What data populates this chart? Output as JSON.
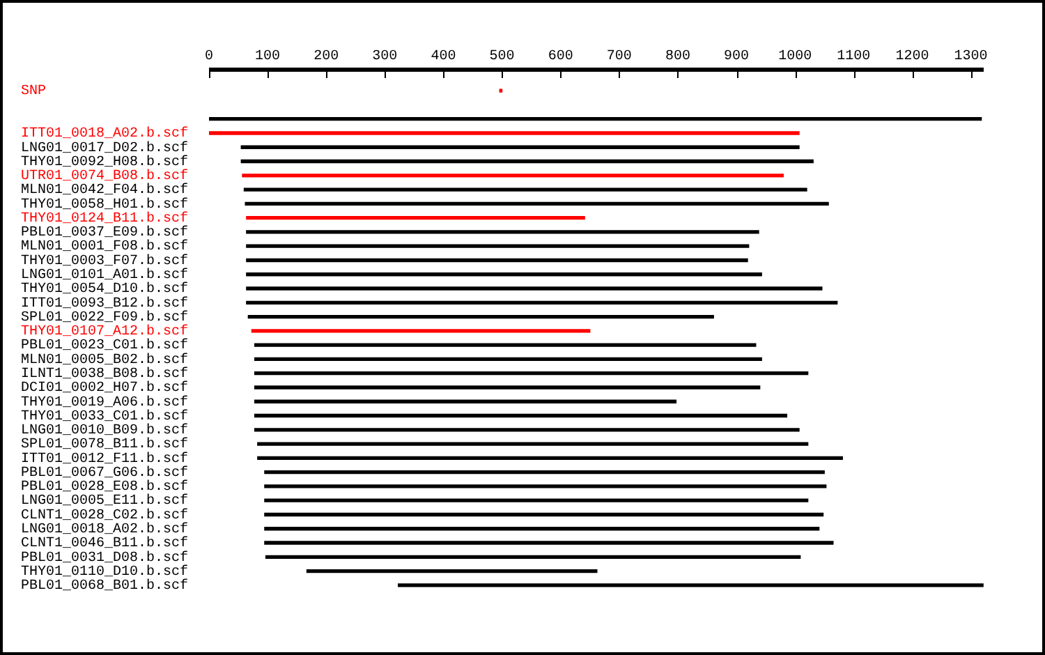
{
  "chart_data": {
    "type": "bar",
    "orientation": "horizontal",
    "categories": [
      "SNP",
      null,
      null,
      "ITT01_0018_A02.b.scf",
      "LNG01_0017_D02.b.scf",
      "THY01_0092_H08.b.scf",
      "UTR01_0074_B08.b.scf",
      "MLN01_0042_F04.b.scf",
      "THY01_0058_H01.b.scf",
      "THY01_0124_B11.b.scf",
      "PBL01_0037_E09.b.scf",
      "MLN01_0001_F08.b.scf",
      "THY01_0003_F07.b.scf",
      "LNG01_0101_A01.b.scf",
      "THY01_0054_D10.b.scf",
      "ITT01_0093_B12.b.scf",
      "SPL01_0022_F09.b.scf",
      "THY01_0107_A12.b.scf",
      "PBL01_0023_C01.b.scf",
      "MLN01_0005_B02.b.scf",
      "ILNT1_0038_B08.b.scf",
      "DCI01_0002_H07.b.scf",
      "THY01_0019_A06.b.scf",
      "THY01_0033_C01.b.scf",
      "LNG01_0010_B09.b.scf",
      "SPL01_0078_B11.b.scf",
      "ITT01_0012_F11.b.scf",
      "PBL01_0067_G06.b.scf",
      "PBL01_0028_E08.b.scf",
      "LNG01_0005_E11.b.scf",
      "CLNT1_0028_C02.b.scf",
      "LNG01_0018_A02.b.scf",
      "CLNT1_0046_B11.b.scf",
      "PBL01_0031_D08.b.scf",
      "THY01_0110_D10.b.scf",
      "PBL01_0068_B01.b.scf"
    ],
    "base": [
      496,
      null,
      0,
      0,
      55,
      55,
      57,
      60,
      62,
      64,
      64,
      64,
      64,
      64,
      64,
      64,
      67,
      73,
      78,
      78,
      78,
      78,
      78,
      78,
      78,
      83,
      83,
      95,
      95,
      95,
      95,
      95,
      95,
      97,
      167,
      323
    ],
    "values": [
      4,
      null,
      1318,
      1007,
      952,
      976,
      923,
      960,
      995,
      577,
      874,
      857,
      855,
      879,
      982,
      1008,
      794,
      577,
      855,
      865,
      944,
      862,
      719,
      908,
      929,
      939,
      998,
      955,
      958,
      927,
      953,
      946,
      970,
      912,
      495,
      998
    ],
    "colors": [
      "#ff0000",
      "#000000",
      "#000000",
      "#ff0000",
      "#000000",
      "#000000",
      "#ff0000",
      "#000000",
      "#000000",
      "#ff0000",
      "#000000",
      "#000000",
      "#000000",
      "#000000",
      "#000000",
      "#000000",
      "#000000",
      "#ff0000",
      "#000000",
      "#000000",
      "#000000",
      "#000000",
      "#000000",
      "#000000",
      "#000000",
      "#000000",
      "#000000",
      "#000000",
      "#000000",
      "#000000",
      "#000000",
      "#000000",
      "#000000",
      "#000000",
      "#000000",
      "#000000"
    ],
    "xlim": [
      0,
      1322
    ],
    "xticks": [
      0,
      100,
      200,
      300,
      400,
      500,
      600,
      700,
      800,
      900,
      1000,
      1100,
      1200,
      1300
    ],
    "grid": false,
    "legend": false
  }
}
